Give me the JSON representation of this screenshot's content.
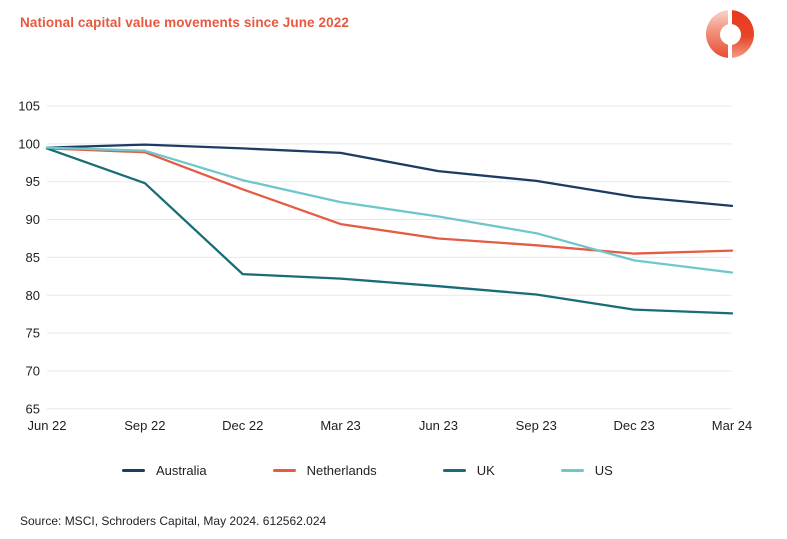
{
  "header": {
    "title": "National capital value movements since June 2022",
    "title_color": "#e8573f",
    "logo_icon": "schroders-capital-ring-logo"
  },
  "chart_data": {
    "type": "line",
    "title": "National capital value movements since June 2022",
    "categories": [
      "Jun 22",
      "Sep 22",
      "Dec 22",
      "Mar 23",
      "Jun 23",
      "Sep 23",
      "Dec 23",
      "Mar 24"
    ],
    "series": [
      {
        "name": "Australia",
        "color": "#1c3c63",
        "values": [
          99.5,
          99.9,
          99.4,
          98.8,
          96.4,
          95.1,
          93.0,
          91.8
        ]
      },
      {
        "name": "Netherlands",
        "color": "#e45c44",
        "values": [
          99.4,
          98.9,
          94.0,
          89.4,
          87.5,
          86.6,
          85.5,
          85.9
        ]
      },
      {
        "name": "UK",
        "color": "#186d76",
        "values": [
          99.4,
          94.8,
          82.8,
          82.2,
          81.2,
          80.1,
          78.1,
          77.6
        ]
      },
      {
        "name": "US",
        "color": "#6fc6cb",
        "values": [
          99.5,
          99.1,
          95.2,
          92.3,
          90.4,
          88.2,
          84.6,
          83.0
        ]
      }
    ],
    "xlabel": "",
    "ylabel": "",
    "ylim": [
      65,
      105
    ],
    "ytick_step": 5,
    "yticks": [
      65,
      70,
      75,
      80,
      85,
      90,
      95,
      100,
      105
    ],
    "grid": "horizontal",
    "gridline_color": "#e9e9e9",
    "tick_label_color": "#1f1f1f",
    "legend_position": "bottom"
  },
  "footer": {
    "source": "Source: MSCI, Schroders Capital, May 2024. 612562.024"
  }
}
